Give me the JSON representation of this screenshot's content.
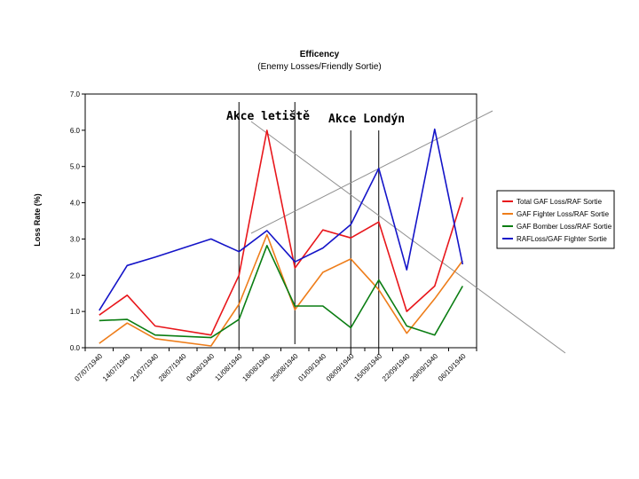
{
  "chart_data": {
    "type": "line",
    "title": "Efficency",
    "subtitle": "(Enemy Losses/Friendly Sortie)",
    "ylabel": "Loss Rate (%)",
    "xlabel": "",
    "ylim": [
      0,
      7
    ],
    "yticks": [
      "0.0",
      "1.0",
      "2.0",
      "3.0",
      "4.0",
      "5.0",
      "6.0",
      "7.0"
    ],
    "categories": [
      "07/07/1940",
      "14/07/1940",
      "21/07/1940",
      "28/07/1940",
      "04/08/1940",
      "11/08/1940",
      "18/08/1940",
      "25/08/1940",
      "01/09/1940",
      "08/09/1940",
      "15/09/1940",
      "22/09/1940",
      "29/09/1940",
      "06/10/1940"
    ],
    "legend_position": "right",
    "grid": false,
    "series": [
      {
        "name": "Total GAF Loss/RAF Sortie",
        "color": "#e8161b",
        "x": [
          0,
          1,
          2,
          4,
          5,
          6,
          7,
          8,
          9,
          10,
          11,
          12,
          13
        ],
        "y": [
          0.9,
          1.45,
          0.6,
          0.35,
          2.0,
          6.0,
          2.2,
          3.25,
          3.03,
          3.47,
          1.0,
          1.7,
          4.15
        ]
      },
      {
        "name": "GAF Fighter Loss/RAF Sortie",
        "color": "#ee7d1a",
        "x": [
          0,
          1,
          2,
          4,
          5,
          6,
          7,
          8,
          9,
          10,
          11,
          12,
          13
        ],
        "y": [
          0.12,
          0.68,
          0.25,
          0.05,
          1.2,
          3.12,
          1.05,
          2.08,
          2.45,
          1.6,
          0.4,
          1.35,
          2.4
        ]
      },
      {
        "name": "GAF Bomber Loss/RAF Sortie",
        "color": "#0a7d12",
        "x": [
          0,
          1,
          2,
          4,
          5,
          6,
          7,
          8,
          9,
          10,
          11,
          12,
          13
        ],
        "y": [
          0.75,
          0.78,
          0.35,
          0.28,
          0.78,
          2.82,
          1.15,
          1.15,
          0.55,
          1.87,
          0.6,
          0.35,
          1.7
        ]
      },
      {
        "name": "RAFLoss/GAF Fighter Sortie",
        "color": "#1414c8",
        "x": [
          0,
          1,
          2,
          4,
          5,
          6,
          7,
          8,
          9,
          10,
          11,
          12,
          13
        ],
        "y": [
          1.03,
          2.27,
          2.5,
          3.0,
          2.65,
          3.23,
          2.37,
          2.75,
          3.4,
          4.95,
          2.15,
          6.03,
          2.3
        ]
      }
    ],
    "annotations": [
      {
        "text": "Akce letiště"
      },
      {
        "text": "Akce Londýn"
      }
    ],
    "marker_lines_x": [
      5,
      7,
      9,
      10
    ]
  }
}
